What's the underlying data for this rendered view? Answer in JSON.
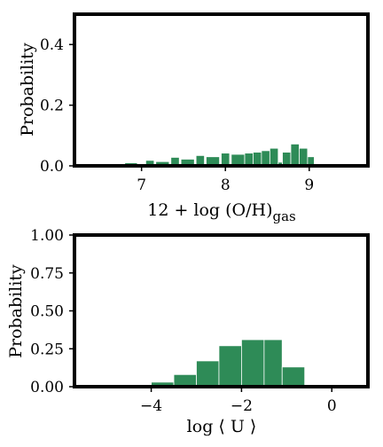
{
  "chart_data": [
    {
      "type": "bar",
      "title": "",
      "xlabel": "12 + log (O/H)",
      "xlabel_subscript": "gas",
      "ylabel": "Probability",
      "xlim": [
        6.2,
        9.7
      ],
      "ylim": [
        0.0,
        0.5
      ],
      "xticks": [
        7,
        8,
        9
      ],
      "yticks": [
        0.0,
        0.2,
        0.4
      ],
      "ytick_labels": [
        "0.0",
        "0.2",
        "0.4"
      ],
      "grid": false,
      "bar_color": "#2e8b57",
      "bins": [
        {
          "x0": 6.7,
          "x1": 6.8,
          "value": 0.005
        },
        {
          "x0": 6.8,
          "x1": 6.95,
          "value": 0.01
        },
        {
          "x0": 7.05,
          "x1": 7.15,
          "value": 0.018
        },
        {
          "x0": 7.17,
          "x1": 7.33,
          "value": 0.014
        },
        {
          "x0": 7.35,
          "x1": 7.45,
          "value": 0.028
        },
        {
          "x0": 7.47,
          "x1": 7.63,
          "value": 0.022
        },
        {
          "x0": 7.65,
          "x1": 7.75,
          "value": 0.034
        },
        {
          "x0": 7.77,
          "x1": 7.93,
          "value": 0.03
        },
        {
          "x0": 7.95,
          "x1": 8.05,
          "value": 0.042
        },
        {
          "x0": 8.07,
          "x1": 8.23,
          "value": 0.038
        },
        {
          "x0": 8.23,
          "x1": 8.33,
          "value": 0.042
        },
        {
          "x0": 8.33,
          "x1": 8.43,
          "value": 0.045
        },
        {
          "x0": 8.43,
          "x1": 8.53,
          "value": 0.05
        },
        {
          "x0": 8.53,
          "x1": 8.63,
          "value": 0.058
        },
        {
          "x0": 8.63,
          "x1": 8.68,
          "value": 0.012
        },
        {
          "x0": 8.68,
          "x1": 8.78,
          "value": 0.045
        },
        {
          "x0": 8.78,
          "x1": 8.88,
          "value": 0.072
        },
        {
          "x0": 8.88,
          "x1": 8.98,
          "value": 0.058
        },
        {
          "x0": 8.98,
          "x1": 9.06,
          "value": 0.03
        }
      ]
    },
    {
      "type": "bar",
      "title": "",
      "xlabel": "log ⟨ U ⟩",
      "ylabel": "Probability",
      "xlim": [
        -5.7,
        0.8
      ],
      "ylim": [
        0.0,
        1.0
      ],
      "xticks": [
        -4,
        -2,
        0
      ],
      "xtick_labels": [
        "−4",
        "−2",
        "0"
      ],
      "yticks": [
        0.0,
        0.25,
        0.5,
        0.75,
        1.0
      ],
      "ytick_labels": [
        "0.00",
        "0.25",
        "0.50",
        "0.75",
        "1.00"
      ],
      "grid": false,
      "bar_color": "#2e8b57",
      "bins": [
        {
          "x0": -4.65,
          "x1": -4.0,
          "value": 0.005
        },
        {
          "x0": -4.0,
          "x1": -3.5,
          "value": 0.03
        },
        {
          "x0": -3.5,
          "x1": -3.0,
          "value": 0.08
        },
        {
          "x0": -3.0,
          "x1": -2.5,
          "value": 0.17
        },
        {
          "x0": -2.5,
          "x1": -2.0,
          "value": 0.27
        },
        {
          "x0": -2.0,
          "x1": -1.5,
          "value": 0.31
        },
        {
          "x0": -1.5,
          "x1": -1.1,
          "value": 0.31
        },
        {
          "x0": -1.1,
          "x1": -0.6,
          "value": 0.13
        }
      ]
    }
  ]
}
